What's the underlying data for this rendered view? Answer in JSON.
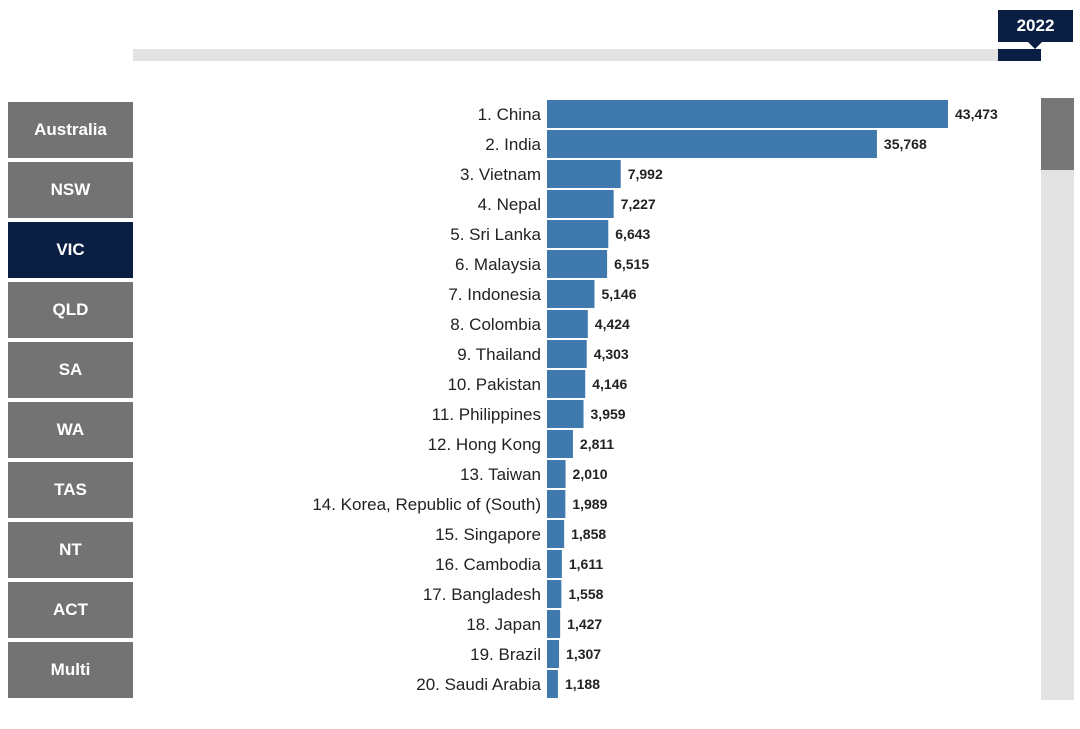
{
  "year": "2022",
  "timeline": {
    "progress": 1.0
  },
  "regions": [
    "Australia",
    "NSW",
    "VIC",
    "QLD",
    "SA",
    "WA",
    "TAS",
    "NT",
    "ACT",
    "Multi"
  ],
  "selected_region": "VIC",
  "colors": {
    "bar": "#3f79ad",
    "active": "#0b1f44",
    "button": "#737373"
  },
  "chart_data": {
    "type": "bar",
    "orientation": "horizontal",
    "categories": [
      "1. China",
      "2. India",
      "3. Vietnam",
      "4. Nepal",
      "5. Sri Lanka",
      "6. Malaysia",
      "7. Indonesia",
      "8. Colombia",
      "9. Thailand",
      "10. Pakistan",
      "11. Philippines",
      "12. Hong Kong",
      "13. Taiwan",
      "14. Korea, Republic of (South)",
      "15. Singapore",
      "16. Cambodia",
      "17. Bangladesh",
      "18. Japan",
      "19. Brazil",
      "20. Saudi Arabia"
    ],
    "values": [
      43473,
      35768,
      7992,
      7227,
      6643,
      6515,
      5146,
      4424,
      4303,
      4146,
      3959,
      2811,
      2010,
      1989,
      1858,
      1611,
      1558,
      1427,
      1307,
      1188
    ],
    "value_labels": [
      "43,473",
      "35,768",
      "7,992",
      "7,227",
      "6,643",
      "6,515",
      "5,146",
      "4,424",
      "4,303",
      "4,146",
      "3,959",
      "2,811",
      "2,010",
      "1,989",
      "1,858",
      "1,611",
      "1,558",
      "1,427",
      "1,307",
      "1,188"
    ]
  }
}
